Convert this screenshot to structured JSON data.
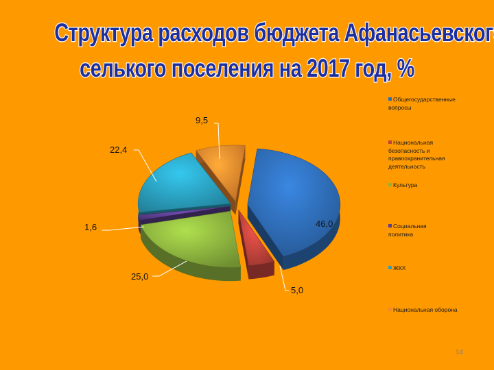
{
  "slide": {
    "title_line1": "Структура расходов бюджета Афанасьевского",
    "title_line2": "селького поселения  на 2017 год, %",
    "page_number": "14"
  },
  "chart_data": {
    "type": "pie",
    "subtype": "3d-exploded",
    "title": "",
    "legend_position": "right",
    "categories": [
      "Общегосударственные вопросы",
      "Национальная безопасность и правоохранительная деятельность",
      "Культура",
      "Социальная политика",
      "ЖКХ",
      "Национальная оборона"
    ],
    "values": [
      46.0,
      5.0,
      25.0,
      1.6,
      22.4,
      9.5
    ],
    "data_labels": [
      "46,0",
      "5,0",
      "25,0",
      "1,6",
      "22,4",
      "9,5"
    ],
    "colors": [
      "#2E6CB5",
      "#C0433C",
      "#8CB33E",
      "#5B3E8E",
      "#2AA0BF",
      "#F0892E"
    ],
    "legend_labels": [
      "Общегосударственные вопросы",
      "Национальная безопасность и правоохранительная деятельность",
      "Культура",
      "Социальная политика",
      "ЖКХ",
      "Национальная оборона"
    ]
  }
}
